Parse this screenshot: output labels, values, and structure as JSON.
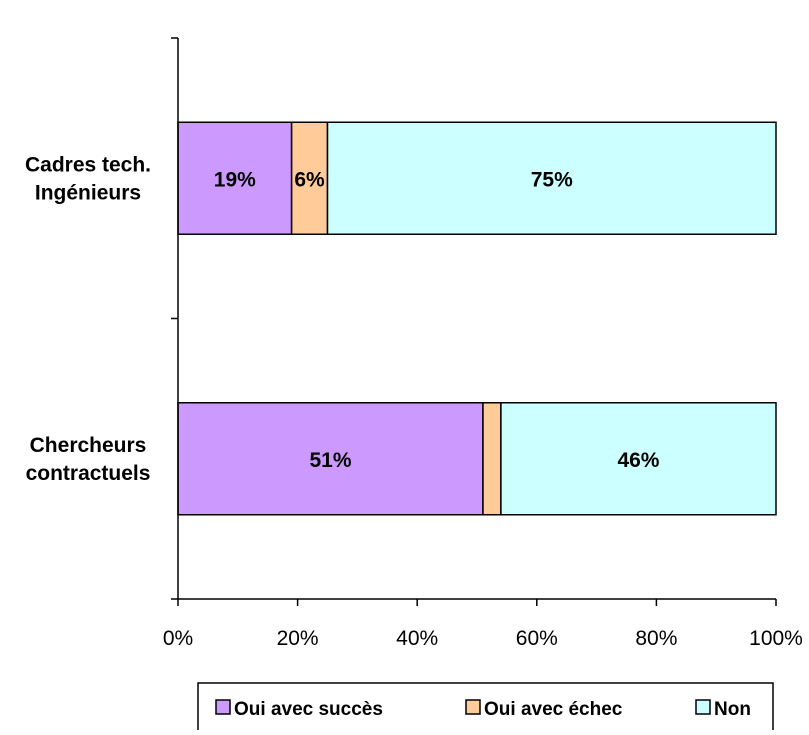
{
  "chart_data": {
    "type": "bar",
    "orientation": "horizontal",
    "stacked": true,
    "percent_stacked": true,
    "categories": [
      "Cadres tech.\nIngénieurs",
      "Chercheurs\ncontractuels"
    ],
    "series": [
      {
        "name": "Oui avec succès",
        "values": [
          19,
          51
        ],
        "labels": [
          "19%",
          "51%"
        ],
        "color": "#CC99FF"
      },
      {
        "name": "Oui avec échec",
        "values": [
          6,
          3
        ],
        "labels": [
          "6%",
          ""
        ],
        "color": "#FFCC99"
      },
      {
        "name": "Non",
        "values": [
          75,
          46
        ],
        "labels": [
          "75%",
          "46%"
        ],
        "color": "#CCFFFF"
      }
    ],
    "xlim": [
      0,
      100
    ],
    "xticks": [
      "0%",
      "20%",
      "40%",
      "60%",
      "80%",
      "100%"
    ],
    "title": "",
    "xlabel": "",
    "ylabel": "",
    "grid": false,
    "legend_position": "bottom"
  }
}
